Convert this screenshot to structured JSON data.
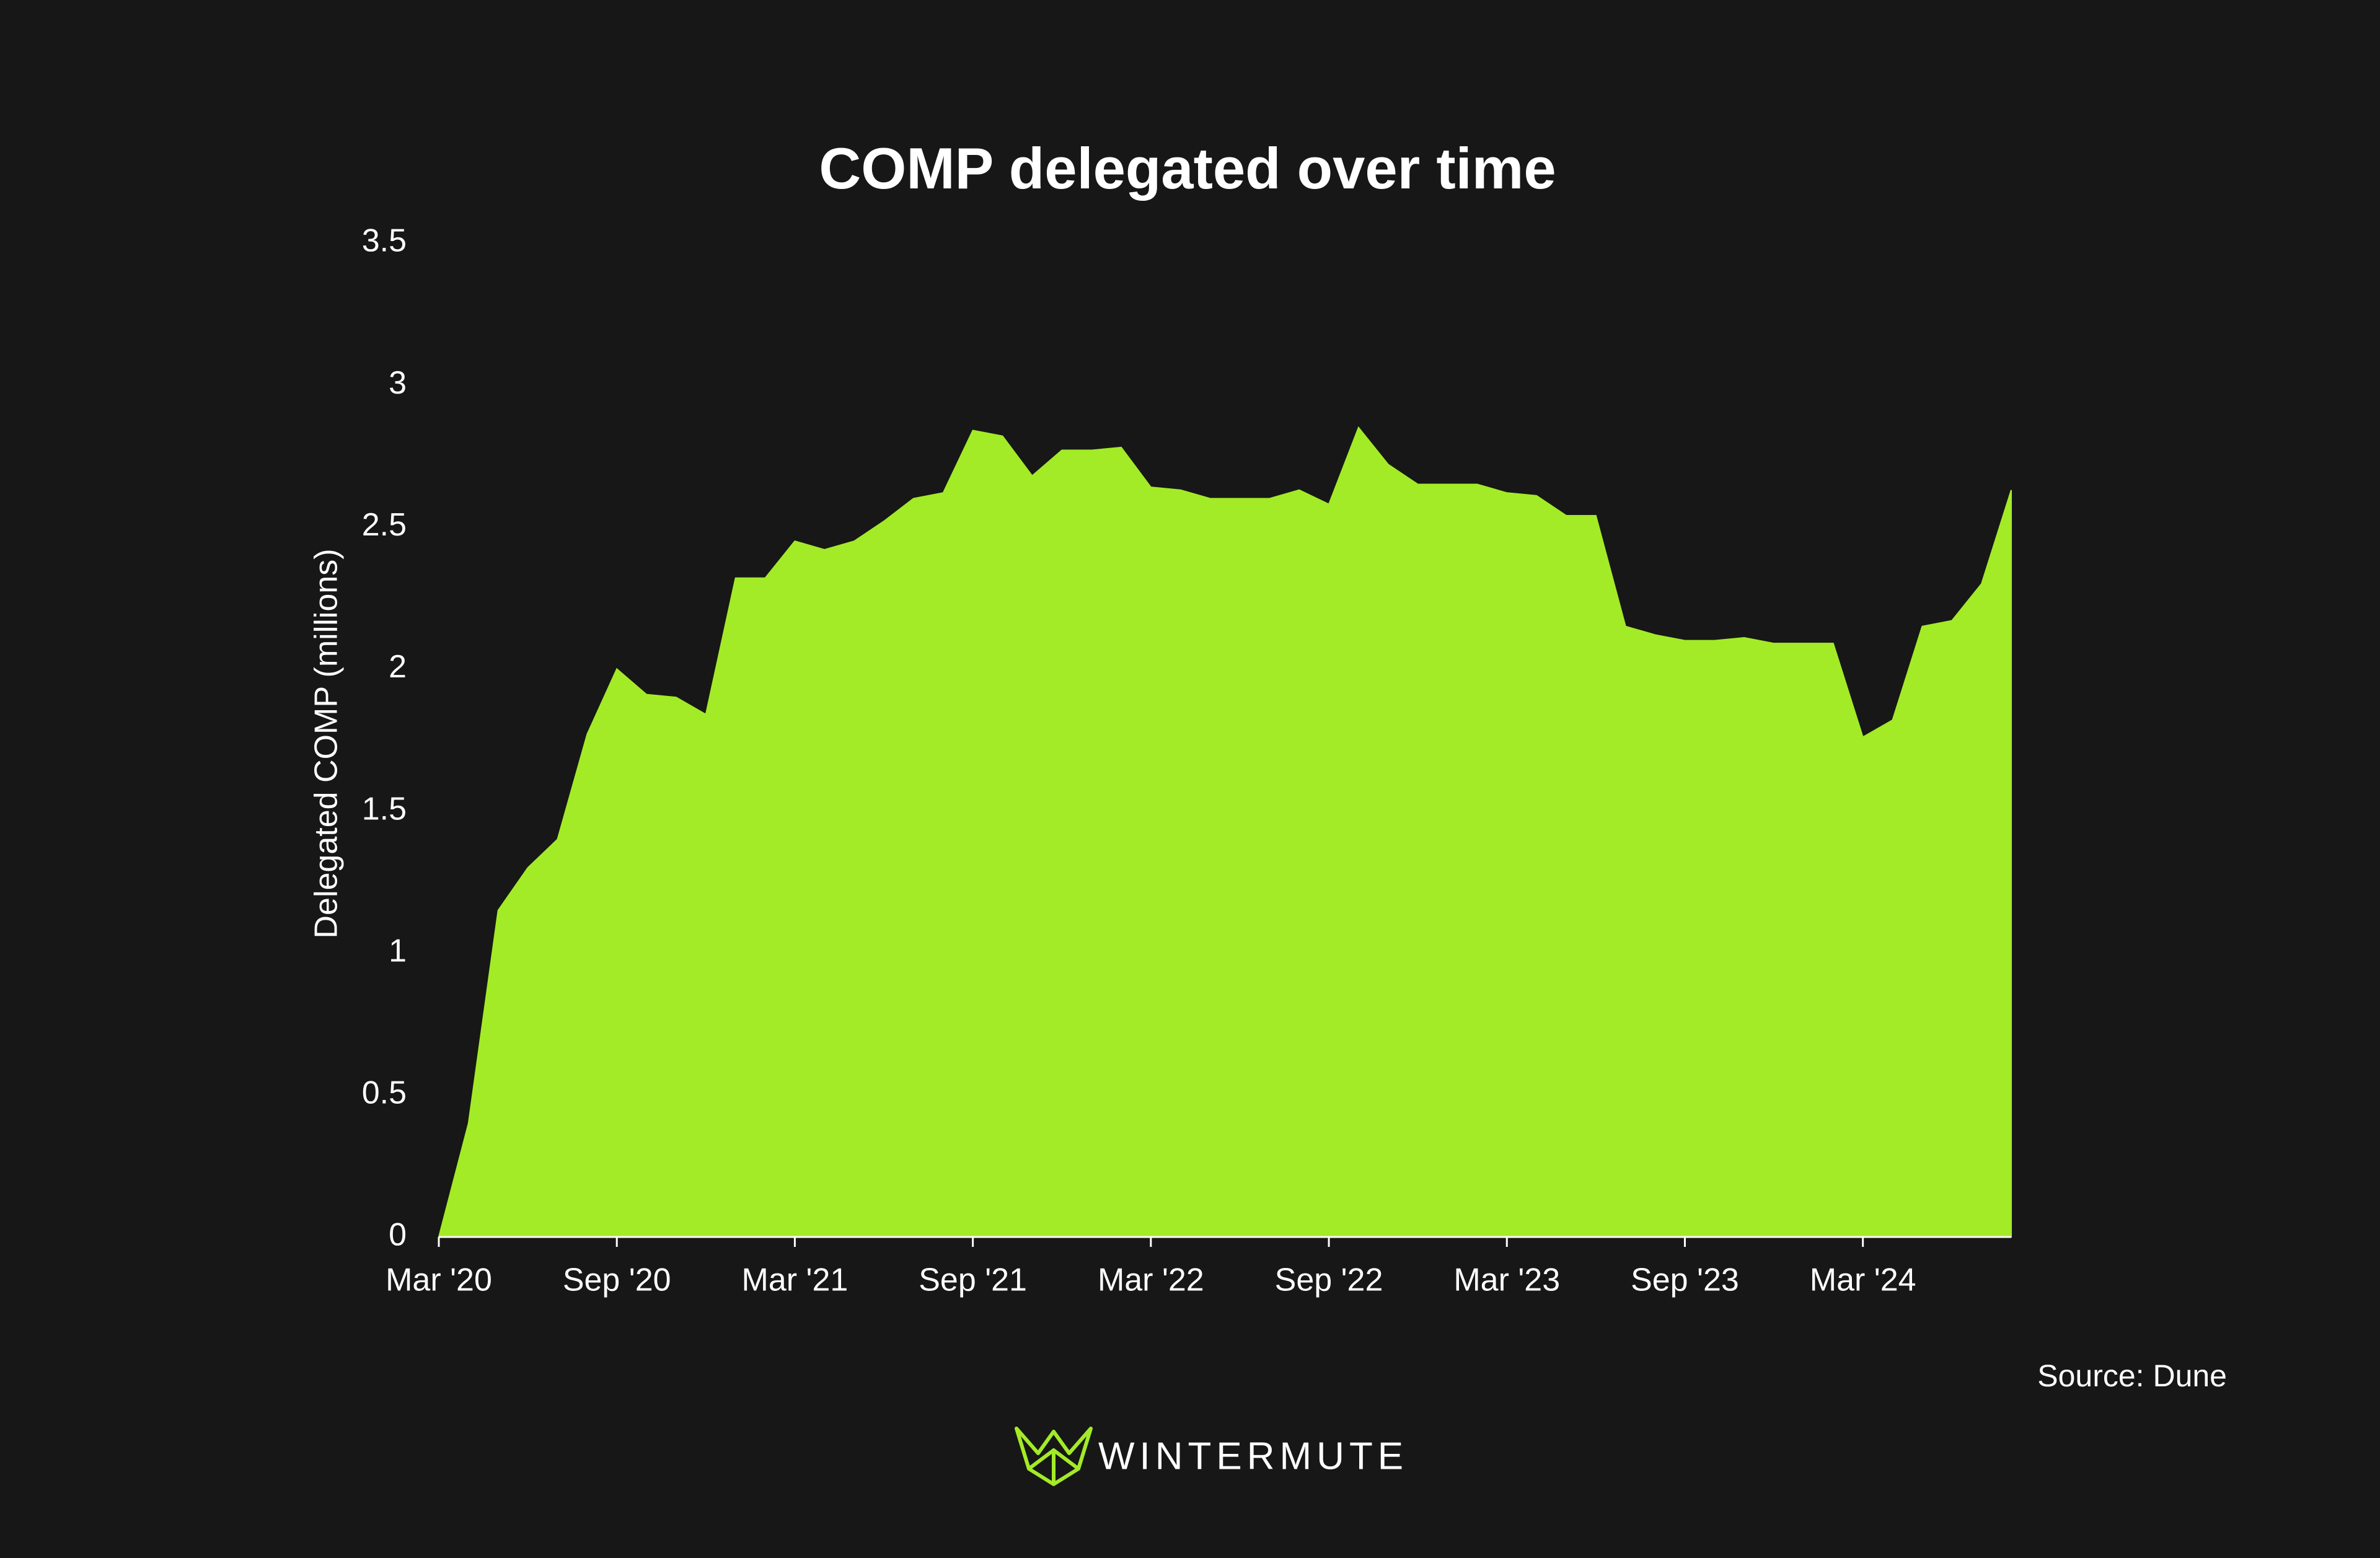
{
  "chart_data": {
    "type": "area",
    "title": "COMP delegated over time",
    "ylabel": "Delegated COMP (millions)",
    "source": "Source: Dune",
    "brand": "WINTERMUTE",
    "x": [
      "2020-03",
      "2020-04",
      "2020-05",
      "2020-06",
      "2020-07",
      "2020-08",
      "2020-09",
      "2020-10",
      "2020-11",
      "2020-12",
      "2021-01",
      "2021-02",
      "2021-03",
      "2021-04",
      "2021-05",
      "2021-06",
      "2021-07",
      "2021-08",
      "2021-09",
      "2021-10",
      "2021-11",
      "2021-12",
      "2022-01",
      "2022-02",
      "2022-03",
      "2022-04",
      "2022-05",
      "2022-06",
      "2022-07",
      "2022-08",
      "2022-09",
      "2022-10",
      "2022-11",
      "2022-12",
      "2023-01",
      "2023-02",
      "2023-03",
      "2023-04",
      "2023-05",
      "2023-06",
      "2023-07",
      "2023-08",
      "2023-09",
      "2023-10",
      "2023-11",
      "2023-12",
      "2024-01",
      "2024-02",
      "2024-03",
      "2024-04",
      "2024-05",
      "2024-06",
      "2024-07",
      "2024-08"
    ],
    "series": [
      {
        "name": "Delegated COMP",
        "color": "#a3eb27",
        "values": [
          0,
          0.4,
          1.15,
          1.3,
          1.4,
          1.77,
          2.0,
          1.91,
          1.9,
          1.84,
          2.32,
          2.32,
          2.45,
          2.42,
          2.45,
          2.52,
          2.6,
          2.62,
          2.84,
          2.82,
          2.68,
          2.77,
          2.77,
          2.78,
          2.64,
          2.63,
          2.6,
          2.6,
          2.6,
          2.63,
          2.58,
          2.85,
          2.72,
          2.65,
          2.65,
          2.65,
          2.62,
          2.61,
          2.54,
          2.54,
          2.15,
          2.12,
          2.1,
          2.1,
          2.11,
          2.09,
          2.09,
          2.09,
          1.76,
          1.82,
          2.15,
          2.17,
          2.3,
          2.63
        ]
      }
    ],
    "xlim": [
      "2020-03",
      "2024-08"
    ],
    "xticks": [
      {
        "value": "2020-03",
        "label": "Mar '20"
      },
      {
        "value": "2020-09",
        "label": "Sep '20"
      },
      {
        "value": "2021-03",
        "label": "Mar '21"
      },
      {
        "value": "2021-09",
        "label": "Sep '21"
      },
      {
        "value": "2022-03",
        "label": "Mar '22"
      },
      {
        "value": "2022-09",
        "label": "Sep '22"
      },
      {
        "value": "2023-03",
        "label": "Mar '23"
      },
      {
        "value": "2023-09",
        "label": "Sep '23"
      },
      {
        "value": "2024-03",
        "label": "Mar '24"
      }
    ],
    "ylim": [
      0,
      3.5
    ],
    "yticks": [
      0,
      0.5,
      1,
      1.5,
      2,
      2.5,
      3,
      3.5
    ],
    "grid": false
  }
}
